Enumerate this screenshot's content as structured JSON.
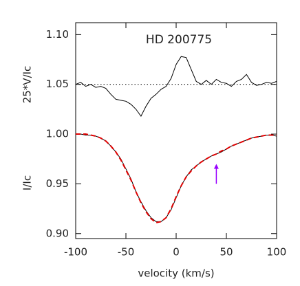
{
  "chart_data": {
    "type": "line",
    "annotation": "HD 200775",
    "xlabel": "velocity (km/s)",
    "ylabels": [
      "25*V/Ic",
      "I/Ic"
    ],
    "x": [
      -100,
      -95,
      -90,
      -85,
      -80,
      -75,
      -70,
      -65,
      -60,
      -55,
      -50,
      -45,
      -40,
      -35,
      -30,
      -25,
      -20,
      -15,
      -10,
      -5,
      0,
      5,
      10,
      15,
      20,
      25,
      30,
      35,
      40,
      45,
      50,
      55,
      60,
      65,
      70,
      75,
      80,
      85,
      90,
      95,
      100
    ],
    "series": [
      {
        "color": "#000000",
        "dash": "solid",
        "values": [
          1.05,
          1.052,
          1.048,
          1.05,
          1.047,
          1.048,
          1.046,
          1.04,
          1.035,
          1.034,
          1.033,
          1.03,
          1.025,
          1.018,
          1.028,
          1.036,
          1.04,
          1.045,
          1.048,
          1.056,
          1.07,
          1.078,
          1.077,
          1.065,
          1.053,
          1.05,
          1.054,
          1.05,
          1.055,
          1.052,
          1.051,
          1.048,
          1.053,
          1.055,
          1.06,
          1.052,
          1.049,
          1.05,
          1.052,
          1.051,
          1.053
        ]
      },
      {
        "color": "#000000",
        "dash": "solid",
        "values": [
          1.0,
          1.0,
          0.999,
          0.999,
          0.998,
          0.996,
          0.993,
          0.988,
          0.982,
          0.975,
          0.965,
          0.955,
          0.942,
          0.932,
          0.923,
          0.916,
          0.912,
          0.912,
          0.916,
          0.924,
          0.936,
          0.948,
          0.957,
          0.964,
          0.968,
          0.972,
          0.975,
          0.978,
          0.98,
          0.982,
          0.985,
          0.988,
          0.99,
          0.992,
          0.994,
          0.996,
          0.997,
          0.998,
          0.999,
          0.999,
          0.998
        ]
      },
      {
        "color": "#e00000",
        "dash": "dashed",
        "values": [
          1.0,
          1.0,
          1.0,
          0.999,
          0.998,
          0.996,
          0.993,
          0.988,
          0.982,
          0.974,
          0.964,
          0.954,
          0.942,
          0.931,
          0.922,
          0.915,
          0.911,
          0.912,
          0.916,
          0.925,
          0.937,
          0.948,
          0.957,
          0.963,
          0.968,
          0.972,
          0.975,
          0.978,
          0.98,
          0.983,
          0.985,
          0.988,
          0.99,
          0.992,
          0.994,
          0.996,
          0.997,
          0.998,
          0.999,
          0.999,
          0.999
        ]
      }
    ],
    "hline": 1.05,
    "arrow": {
      "x": 40,
      "y0": 0.95,
      "y1": 0.97,
      "color": "#9900ff"
    },
    "xlim": [
      -100,
      100
    ],
    "xticks": [
      -100,
      -50,
      0,
      50,
      100
    ],
    "ylim": [
      0.895,
      1.112
    ],
    "yticks": [
      {
        "value": 0.9,
        "label": "0.90"
      },
      0.95,
      {
        "value": 1,
        "label": "1.00"
      },
      1.05,
      {
        "value": 1.1,
        "label": "1.10"
      }
    ]
  }
}
